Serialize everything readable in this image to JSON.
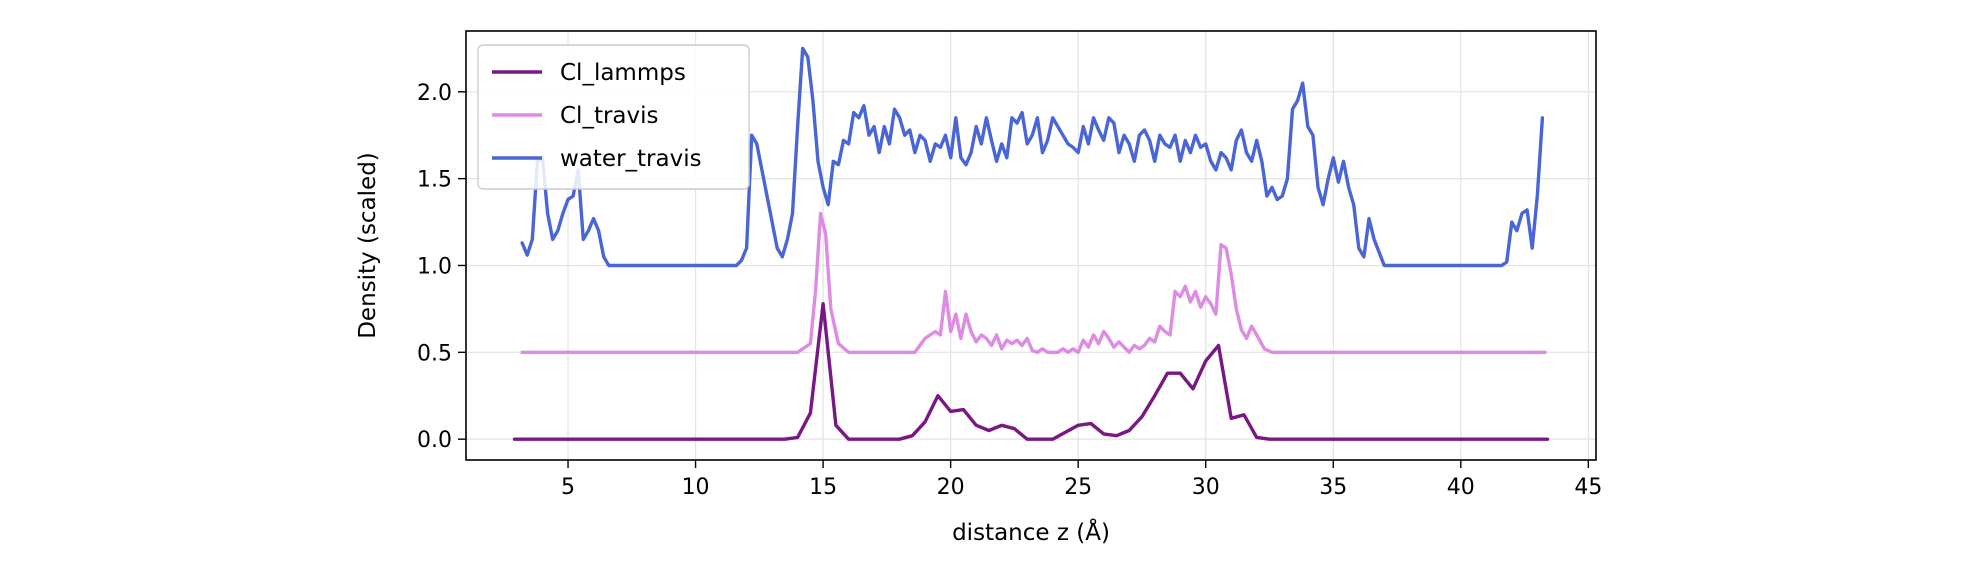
{
  "chart_data": {
    "type": "line",
    "xlabel": "distance z (Å)",
    "ylabel": "Density (scaled)",
    "xlim": [
      1,
      45.3
    ],
    "ylim": [
      -0.12,
      2.35
    ],
    "xticks": [
      5,
      10,
      15,
      20,
      25,
      30,
      35,
      40,
      45
    ],
    "yticks": [
      0.0,
      0.5,
      1.0,
      1.5,
      2.0
    ],
    "xtick_labels": [
      "5",
      "10",
      "15",
      "20",
      "25",
      "30",
      "35",
      "40",
      "45"
    ],
    "ytick_labels": [
      "0.0",
      "0.5",
      "1.0",
      "1.5",
      "2.0"
    ],
    "grid": true,
    "legend_position": "top-left",
    "series": [
      {
        "name": "Cl_lammps",
        "color": "#771883",
        "x": [
          2.9,
          4,
          6,
          8,
          10,
          12,
          13.5,
          14,
          14.5,
          15,
          15.5,
          16,
          17,
          18,
          18.5,
          19,
          19.5,
          20,
          20.5,
          21,
          21.5,
          22,
          22.5,
          23,
          23.5,
          24,
          24.5,
          25,
          25.5,
          26,
          26.5,
          27,
          27.5,
          28,
          28.5,
          29,
          29.5,
          30,
          30.5,
          31,
          31.5,
          32,
          32.5,
          33,
          35,
          37,
          39,
          41,
          43.4
        ],
        "y": [
          0,
          0,
          0,
          0,
          0,
          0,
          0,
          0.01,
          0.15,
          0.78,
          0.08,
          0,
          0,
          0,
          0.02,
          0.1,
          0.25,
          0.16,
          0.17,
          0.08,
          0.05,
          0.08,
          0.06,
          0,
          0,
          0,
          0.04,
          0.08,
          0.09,
          0.03,
          0.02,
          0.05,
          0.13,
          0.25,
          0.38,
          0.38,
          0.29,
          0.45,
          0.54,
          0.12,
          0.14,
          0.01,
          0,
          0,
          0,
          0,
          0,
          0,
          0
        ]
      },
      {
        "name": "Cl_travis",
        "color": "#DE8BE3",
        "x": [
          3.2,
          6,
          9,
          12,
          14,
          14.5,
          14.7,
          14.9,
          15.1,
          15.3,
          15.6,
          16,
          17,
          18,
          18.6,
          19,
          19.4,
          19.6,
          19.8,
          20,
          20.2,
          20.4,
          20.6,
          20.8,
          21,
          21.2,
          21.4,
          21.6,
          21.8,
          22,
          22.2,
          22.4,
          22.6,
          22.8,
          23,
          23.2,
          23.4,
          23.6,
          23.8,
          24,
          24.2,
          24.4,
          24.6,
          24.8,
          25,
          25.2,
          25.4,
          25.6,
          25.8,
          26,
          26.2,
          26.4,
          26.6,
          26.8,
          27,
          27.2,
          27.4,
          27.6,
          27.8,
          28,
          28.2,
          28.4,
          28.6,
          28.8,
          29,
          29.2,
          29.4,
          29.6,
          29.8,
          30,
          30.2,
          30.4,
          30.6,
          30.8,
          31,
          31.2,
          31.4,
          31.6,
          31.8,
          32,
          32.3,
          32.6,
          34,
          37,
          40,
          43.3
        ],
        "y": [
          0.5,
          0.5,
          0.5,
          0.5,
          0.5,
          0.55,
          0.85,
          1.3,
          1.18,
          0.75,
          0.55,
          0.5,
          0.5,
          0.5,
          0.5,
          0.58,
          0.62,
          0.6,
          0.85,
          0.62,
          0.72,
          0.58,
          0.72,
          0.62,
          0.56,
          0.6,
          0.58,
          0.54,
          0.6,
          0.52,
          0.57,
          0.55,
          0.57,
          0.54,
          0.58,
          0.51,
          0.5,
          0.52,
          0.5,
          0.5,
          0.5,
          0.52,
          0.5,
          0.52,
          0.5,
          0.57,
          0.53,
          0.6,
          0.55,
          0.62,
          0.58,
          0.53,
          0.56,
          0.53,
          0.5,
          0.54,
          0.52,
          0.54,
          0.58,
          0.56,
          0.65,
          0.62,
          0.6,
          0.85,
          0.82,
          0.88,
          0.79,
          0.85,
          0.76,
          0.82,
          0.78,
          0.72,
          1.12,
          1.1,
          0.95,
          0.75,
          0.63,
          0.58,
          0.65,
          0.6,
          0.52,
          0.5,
          0.5,
          0.5,
          0.5,
          0.5
        ]
      },
      {
        "name": "water_travis",
        "color": "#4A65D5",
        "x": [
          3.2,
          3.4,
          3.6,
          3.8,
          4,
          4.2,
          4.4,
          4.6,
          4.8,
          5,
          5.2,
          5.4,
          5.6,
          5.8,
          6,
          6.2,
          6.4,
          6.6,
          7,
          8,
          9,
          10,
          11,
          11.6,
          11.8,
          12,
          12.2,
          12.4,
          12.6,
          12.8,
          13,
          13.2,
          13.4,
          13.6,
          13.8,
          14,
          14.2,
          14.4,
          14.6,
          14.8,
          15,
          15.2,
          15.4,
          15.6,
          15.8,
          16,
          16.2,
          16.4,
          16.6,
          16.8,
          17,
          17.2,
          17.4,
          17.6,
          17.8,
          18,
          18.2,
          18.4,
          18.6,
          18.8,
          19,
          19.2,
          19.4,
          19.6,
          19.8,
          20,
          20.2,
          20.4,
          20.6,
          20.8,
          21,
          21.2,
          21.4,
          21.6,
          21.8,
          22,
          22.2,
          22.4,
          22.6,
          22.8,
          23,
          23.2,
          23.4,
          23.6,
          23.8,
          24,
          24.2,
          24.4,
          24.6,
          24.8,
          25,
          25.2,
          25.4,
          25.6,
          25.8,
          26,
          26.2,
          26.4,
          26.6,
          26.8,
          27,
          27.2,
          27.4,
          27.6,
          27.8,
          28,
          28.2,
          28.4,
          28.6,
          28.8,
          29,
          29.2,
          29.4,
          29.6,
          29.8,
          30,
          30.2,
          30.4,
          30.6,
          30.8,
          31,
          31.2,
          31.4,
          31.6,
          31.8,
          32,
          32.2,
          32.4,
          32.6,
          32.8,
          33,
          33.2,
          33.4,
          33.6,
          33.8,
          34,
          34.2,
          34.4,
          34.6,
          34.8,
          35,
          35.2,
          35.4,
          35.6,
          35.8,
          36,
          36.2,
          36.4,
          36.6,
          37,
          38,
          39,
          40,
          41,
          41.4,
          41.6,
          41.8,
          42,
          42.2,
          42.4,
          42.6,
          42.8,
          43,
          43.2
        ],
        "y": [
          1.13,
          1.06,
          1.15,
          1.6,
          1.62,
          1.3,
          1.15,
          1.2,
          1.3,
          1.38,
          1.4,
          1.55,
          1.15,
          1.2,
          1.27,
          1.2,
          1.05,
          1.0,
          1.0,
          1.0,
          1.0,
          1.0,
          1.0,
          1.0,
          1.03,
          1.1,
          1.75,
          1.7,
          1.55,
          1.4,
          1.25,
          1.1,
          1.05,
          1.15,
          1.3,
          1.8,
          2.25,
          2.2,
          1.95,
          1.6,
          1.45,
          1.35,
          1.6,
          1.58,
          1.72,
          1.7,
          1.88,
          1.85,
          1.92,
          1.75,
          1.8,
          1.65,
          1.8,
          1.7,
          1.9,
          1.85,
          1.75,
          1.78,
          1.65,
          1.75,
          1.72,
          1.6,
          1.7,
          1.68,
          1.75,
          1.62,
          1.85,
          1.62,
          1.58,
          1.65,
          1.8,
          1.7,
          1.85,
          1.72,
          1.6,
          1.7,
          1.62,
          1.85,
          1.82,
          1.88,
          1.7,
          1.75,
          1.85,
          1.65,
          1.72,
          1.85,
          1.8,
          1.75,
          1.7,
          1.68,
          1.65,
          1.8,
          1.7,
          1.85,
          1.78,
          1.72,
          1.85,
          1.82,
          1.65,
          1.75,
          1.7,
          1.6,
          1.75,
          1.78,
          1.72,
          1.6,
          1.75,
          1.7,
          1.68,
          1.75,
          1.6,
          1.72,
          1.65,
          1.75,
          1.68,
          1.7,
          1.6,
          1.55,
          1.65,
          1.62,
          1.55,
          1.72,
          1.78,
          1.65,
          1.6,
          1.72,
          1.6,
          1.4,
          1.45,
          1.38,
          1.4,
          1.5,
          1.9,
          1.95,
          2.05,
          1.8,
          1.75,
          1.45,
          1.35,
          1.5,
          1.62,
          1.48,
          1.6,
          1.45,
          1.35,
          1.1,
          1.05,
          1.27,
          1.15,
          1.0,
          1.0,
          1.0,
          1.0,
          1.0,
          1.0,
          1.0,
          1.02,
          1.25,
          1.2,
          1.3,
          1.32,
          1.1,
          1.4,
          1.85
        ]
      }
    ]
  }
}
